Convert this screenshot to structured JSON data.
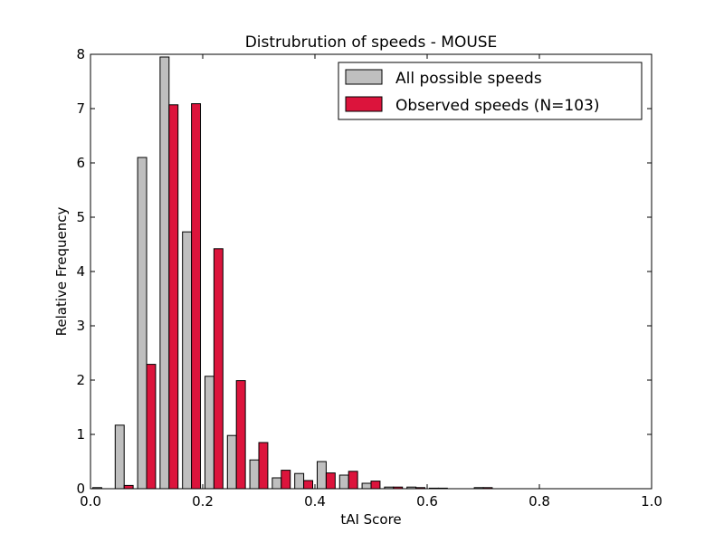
{
  "chart_data": {
    "type": "bar",
    "title": "Distrubrution of speeds - MOUSE",
    "xlabel": "tAI Score",
    "ylabel": "Relative Frequency",
    "xlim": [
      0.0,
      1.0
    ],
    "ylim": [
      0,
      8
    ],
    "xticks": [
      "0.0",
      "0.2",
      "0.4",
      "0.6",
      "0.8",
      "1.0"
    ],
    "yticks": [
      "0",
      "1",
      "2",
      "3",
      "4",
      "5",
      "6",
      "7",
      "8"
    ],
    "grid": false,
    "legend_position": "top-right",
    "bin_starts": [
      0.0,
      0.04,
      0.08,
      0.12,
      0.16,
      0.2,
      0.24,
      0.28,
      0.32,
      0.36,
      0.4,
      0.44,
      0.48,
      0.52,
      0.56,
      0.6,
      0.64,
      0.68,
      0.72,
      0.76,
      0.8,
      0.84,
      0.88,
      0.92,
      0.96
    ],
    "bin_width": 0.04,
    "series": [
      {
        "name": "All possible speeds",
        "color": "#bfbfbf",
        "values": [
          0.02,
          1.17,
          6.1,
          7.95,
          4.73,
          2.07,
          0.98,
          0.53,
          0.2,
          0.28,
          0.5,
          0.25,
          0.1,
          0.03,
          0.03,
          0.01,
          0.0,
          0.02,
          0.0,
          0.0,
          0.0,
          0.0,
          0.0,
          0.0,
          0.0
        ]
      },
      {
        "name": "Observed speeds (N=103)",
        "color": "#dc143c",
        "values": [
          0.0,
          0.06,
          2.29,
          7.07,
          7.09,
          4.42,
          1.99,
          0.85,
          0.34,
          0.15,
          0.29,
          0.32,
          0.14,
          0.03,
          0.02,
          0.01,
          0.0,
          0.02,
          0.0,
          0.0,
          0.0,
          0.0,
          0.0,
          0.0,
          0.0
        ]
      }
    ]
  }
}
